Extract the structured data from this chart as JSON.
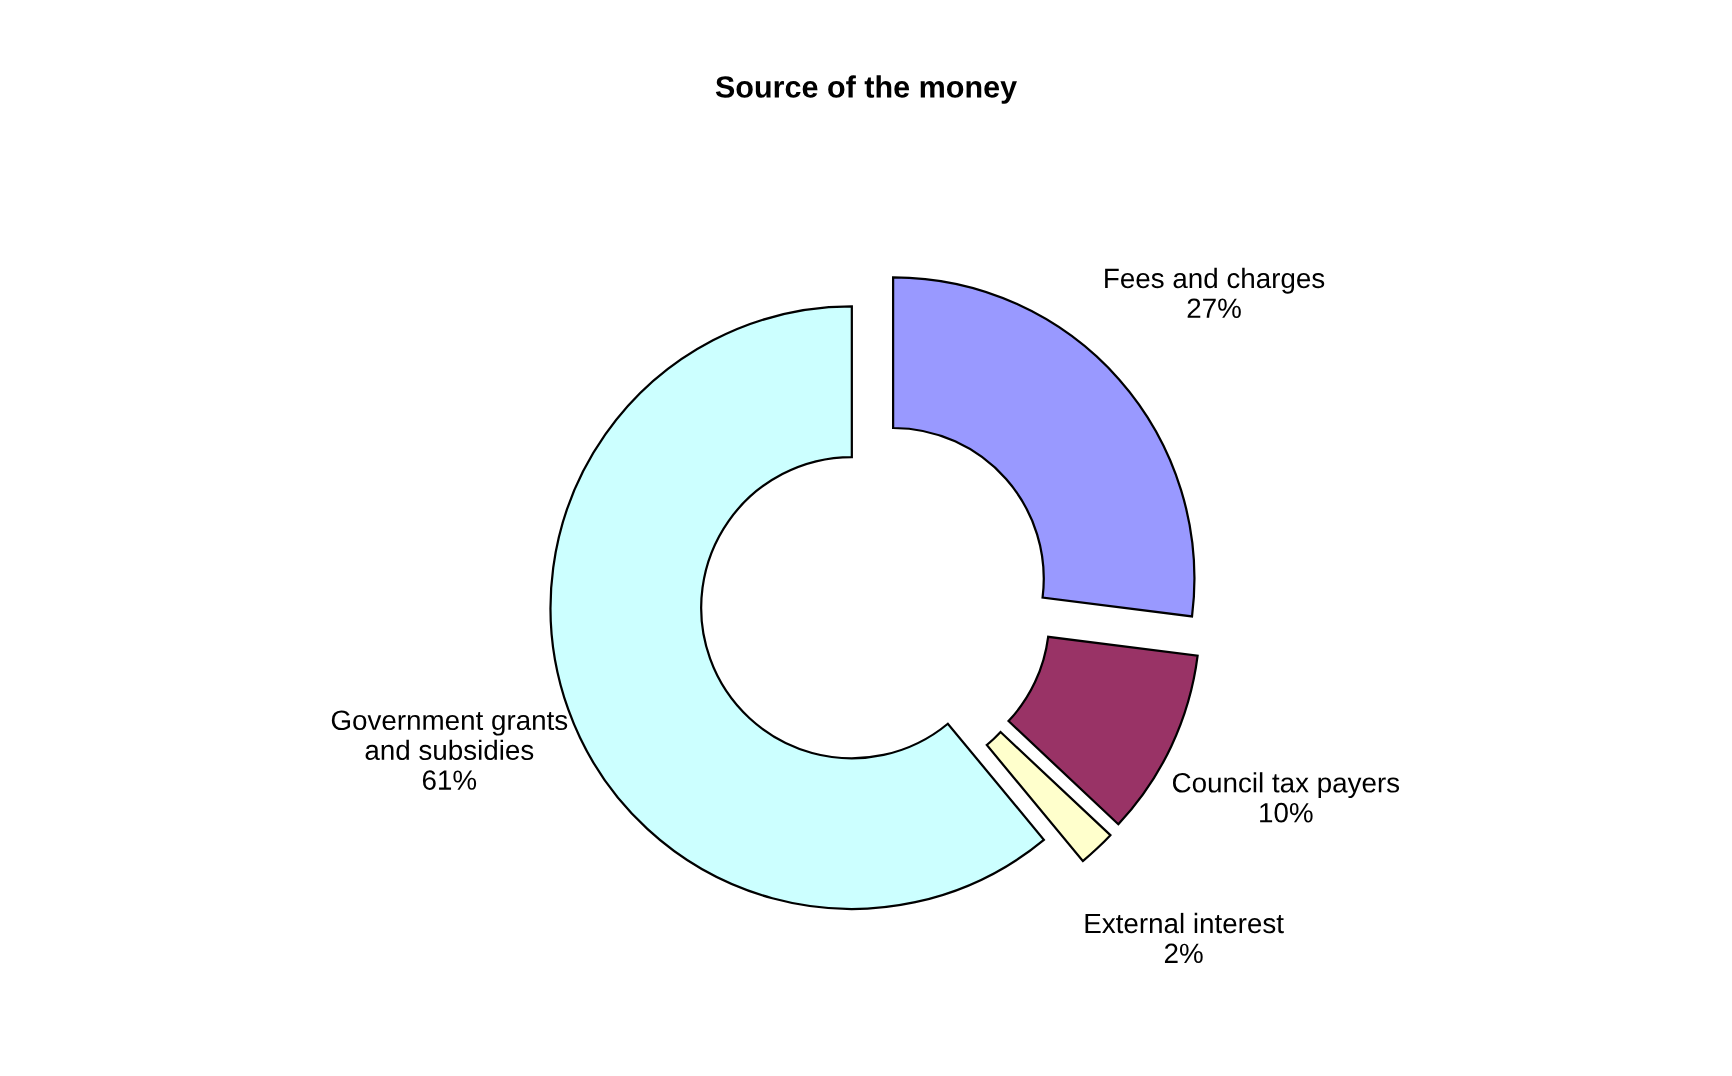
{
  "chart_data": {
    "type": "donut",
    "title": "Source of the money",
    "categories": [
      "Fees and charges",
      "Council tax payers",
      "External interest",
      "Government grants\nand subsidies"
    ],
    "values": [
      27,
      10,
      2,
      61
    ],
    "value_labels": [
      "27%",
      "10%",
      "2%",
      "61%"
    ],
    "colors": [
      "#9999ff",
      "#993366",
      "#ffffcc",
      "#ccffff"
    ],
    "legend": false
  }
}
